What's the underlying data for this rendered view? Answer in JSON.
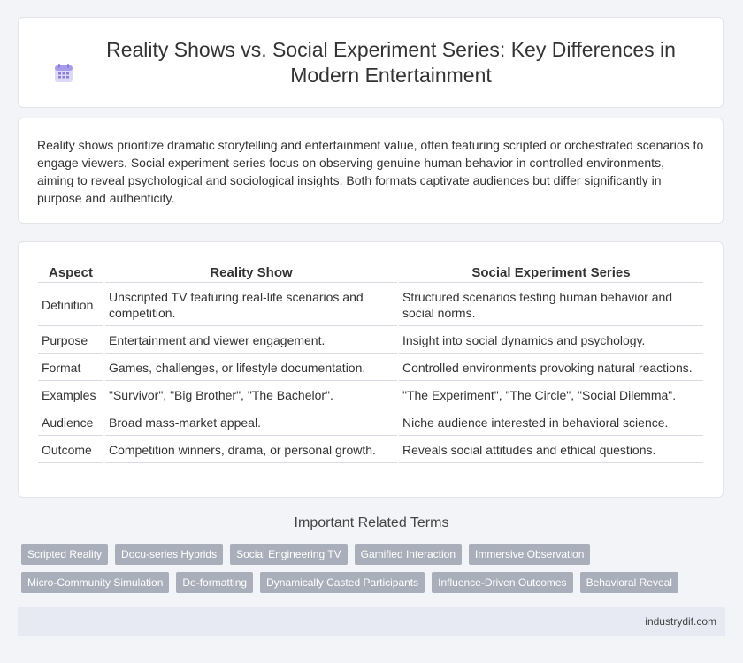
{
  "header": {
    "icon": "calendar-icon",
    "title": "Reality Shows vs. Social Experiment Series: Key Differences in Modern Entertainment"
  },
  "intro": {
    "text": "Reality shows prioritize dramatic storytelling and entertainment value, often featuring scripted or orchestrated scenarios to engage viewers. Social experiment series focus on observing genuine human behavior in controlled environments, aiming to reveal psychological and sociological insights. Both formats captivate audiences but differ significantly in purpose and authenticity."
  },
  "table": {
    "headers": [
      "Aspect",
      "Reality Show",
      "Social Experiment Series"
    ],
    "rows": [
      [
        "Definition",
        "Unscripted TV featuring real-life scenarios and competition.",
        "Structured scenarios testing human behavior and social norms."
      ],
      [
        "Purpose",
        "Entertainment and viewer engagement.",
        "Insight into social dynamics and psychology."
      ],
      [
        "Format",
        "Games, challenges, or lifestyle documentation.",
        "Controlled environments provoking natural reactions."
      ],
      [
        "Examples",
        "\"Survivor\", \"Big Brother\", \"The Bachelor\".",
        "\"The Experiment\", \"The Circle\", \"Social Dilemma\"."
      ],
      [
        "Audience",
        "Broad mass-market appeal.",
        "Niche audience interested in behavioral science."
      ],
      [
        "Outcome",
        "Competition winners, drama, or personal growth.",
        "Reveals social attitudes and ethical questions."
      ]
    ]
  },
  "related": {
    "title": "Important Related Terms",
    "tags": [
      "Scripted Reality",
      "Docu-series Hybrids",
      "Social Engineering TV",
      "Gamified Interaction",
      "Immersive Observation",
      "Micro-Community Simulation",
      "De-formatting",
      "Dynamically Casted Participants",
      "Influence-Driven Outcomes",
      "Behavioral Reveal"
    ]
  },
  "footer": {
    "site": "industrydif.com"
  },
  "colors": {
    "tag_bg": "#a9afba",
    "footer_bg": "#e7eaf3",
    "icon_accent": "#8a7fd6"
  }
}
